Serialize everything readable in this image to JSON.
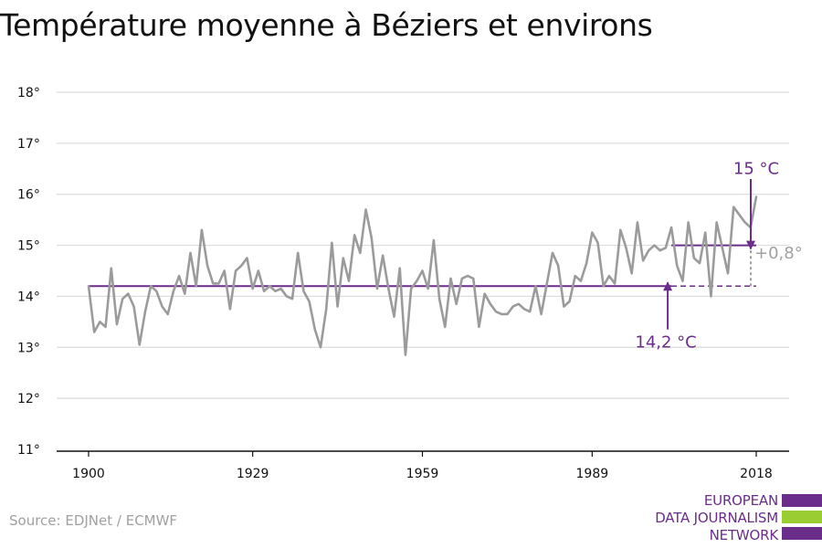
{
  "colors": {
    "line": "#9b9b9b",
    "accent": "#6b2d8c",
    "grid": "#dcdcdc",
    "axis": "#111111",
    "delta": "#a0a0a0",
    "logo_green": "#9acd32"
  },
  "source": "Source: EDJNet / ECMWF",
  "logo": {
    "lines": [
      "EUROPEAN",
      "DATA JOURNALISM",
      "NETWORK"
    ]
  },
  "chart_data": {
    "type": "line",
    "title": "Température moyenne à Béziers et environs",
    "xlabel": "",
    "ylabel": "",
    "xlim": [
      1900,
      2018
    ],
    "ylim": [
      11,
      18
    ],
    "y_ticks": [
      11,
      12,
      13,
      14,
      15,
      16,
      17,
      18
    ],
    "y_tick_labels": [
      "11°",
      "12°",
      "13°",
      "14°",
      "15°",
      "16°",
      "17°",
      "18°"
    ],
    "x_ticks": [
      1900,
      1929,
      1959,
      1989,
      2018
    ],
    "x_tick_labels": [
      "1900",
      "1929",
      "1959",
      "1989",
      "2018"
    ],
    "grid": true,
    "legend": "none",
    "series": [
      {
        "x": [
          1900,
          1901,
          1902,
          1903,
          1904,
          1905,
          1906,
          1907,
          1908,
          1909,
          1910,
          1911,
          1912,
          1913,
          1914,
          1915,
          1916,
          1917,
          1918,
          1919,
          1920,
          1921,
          1922,
          1923,
          1924,
          1925,
          1926,
          1927,
          1928,
          1929,
          1930,
          1931,
          1932,
          1933,
          1934,
          1935,
          1936,
          1937,
          1938,
          1939,
          1940,
          1941,
          1942,
          1943,
          1944,
          1945,
          1946,
          1947,
          1948,
          1949,
          1950,
          1951,
          1952,
          1953,
          1954,
          1955,
          1956,
          1957,
          1958,
          1959,
          1960,
          1961,
          1962,
          1963,
          1964,
          1965,
          1966,
          1967,
          1968,
          1969,
          1970,
          1971,
          1972,
          1973,
          1974,
          1975,
          1976,
          1977,
          1978,
          1979,
          1980,
          1981,
          1982,
          1983,
          1984,
          1985,
          1986,
          1987,
          1988,
          1989,
          1990,
          1991,
          1992,
          1993,
          1994,
          1995,
          1996,
          1997,
          1998,
          1999,
          2000,
          2001,
          2002,
          2003,
          2004,
          2005,
          2006,
          2007,
          2008,
          2009,
          2010,
          2011,
          2012,
          2013,
          2014,
          2015,
          2016,
          2017,
          2018
        ],
        "values": [
          14.2,
          13.3,
          13.5,
          13.4,
          14.55,
          13.45,
          13.95,
          14.05,
          13.8,
          13.05,
          13.7,
          14.2,
          14.1,
          13.8,
          13.65,
          14.1,
          14.4,
          14.05,
          14.85,
          14.2,
          15.3,
          14.6,
          14.25,
          14.25,
          14.5,
          13.75,
          14.5,
          14.6,
          14.75,
          14.15,
          14.5,
          14.1,
          14.2,
          14.1,
          14.15,
          14.0,
          13.95,
          14.85,
          14.1,
          13.9,
          13.35,
          13.0,
          13.75,
          15.05,
          13.8,
          14.75,
          14.3,
          15.2,
          14.85,
          15.7,
          15.15,
          14.15,
          14.8,
          14.15,
          13.6,
          14.55,
          12.85,
          14.15,
          14.3,
          14.5,
          14.15,
          15.1,
          13.95,
          13.4,
          14.35,
          13.85,
          14.35,
          14.4,
          14.35,
          13.4,
          14.05,
          13.85,
          13.7,
          13.65,
          13.65,
          13.8,
          13.85,
          13.75,
          13.7,
          14.2,
          13.65,
          14.25,
          14.85,
          14.6,
          13.8,
          13.9,
          14.4,
          14.3,
          14.65,
          15.25,
          15.05,
          14.2,
          14.4,
          14.25,
          15.3,
          14.95,
          14.45,
          15.45,
          14.7,
          14.9,
          15.0,
          14.9,
          14.95,
          15.35,
          14.6,
          14.3,
          15.45,
          14.75,
          14.65,
          15.25,
          14.0,
          15.45,
          14.95,
          14.45,
          15.75,
          15.6,
          15.45,
          15.35,
          15.95
        ]
      }
    ],
    "annotations": [
      {
        "label": "14,2 °C",
        "value": 14.2,
        "x_start": 1900,
        "x_end": 2003
      },
      {
        "label": "15 °C",
        "value": 15.0,
        "x_start": 2003,
        "x_end": 2018
      },
      {
        "label": "+0,8°",
        "from": 14.2,
        "to": 15.0,
        "x": 2018
      }
    ]
  }
}
